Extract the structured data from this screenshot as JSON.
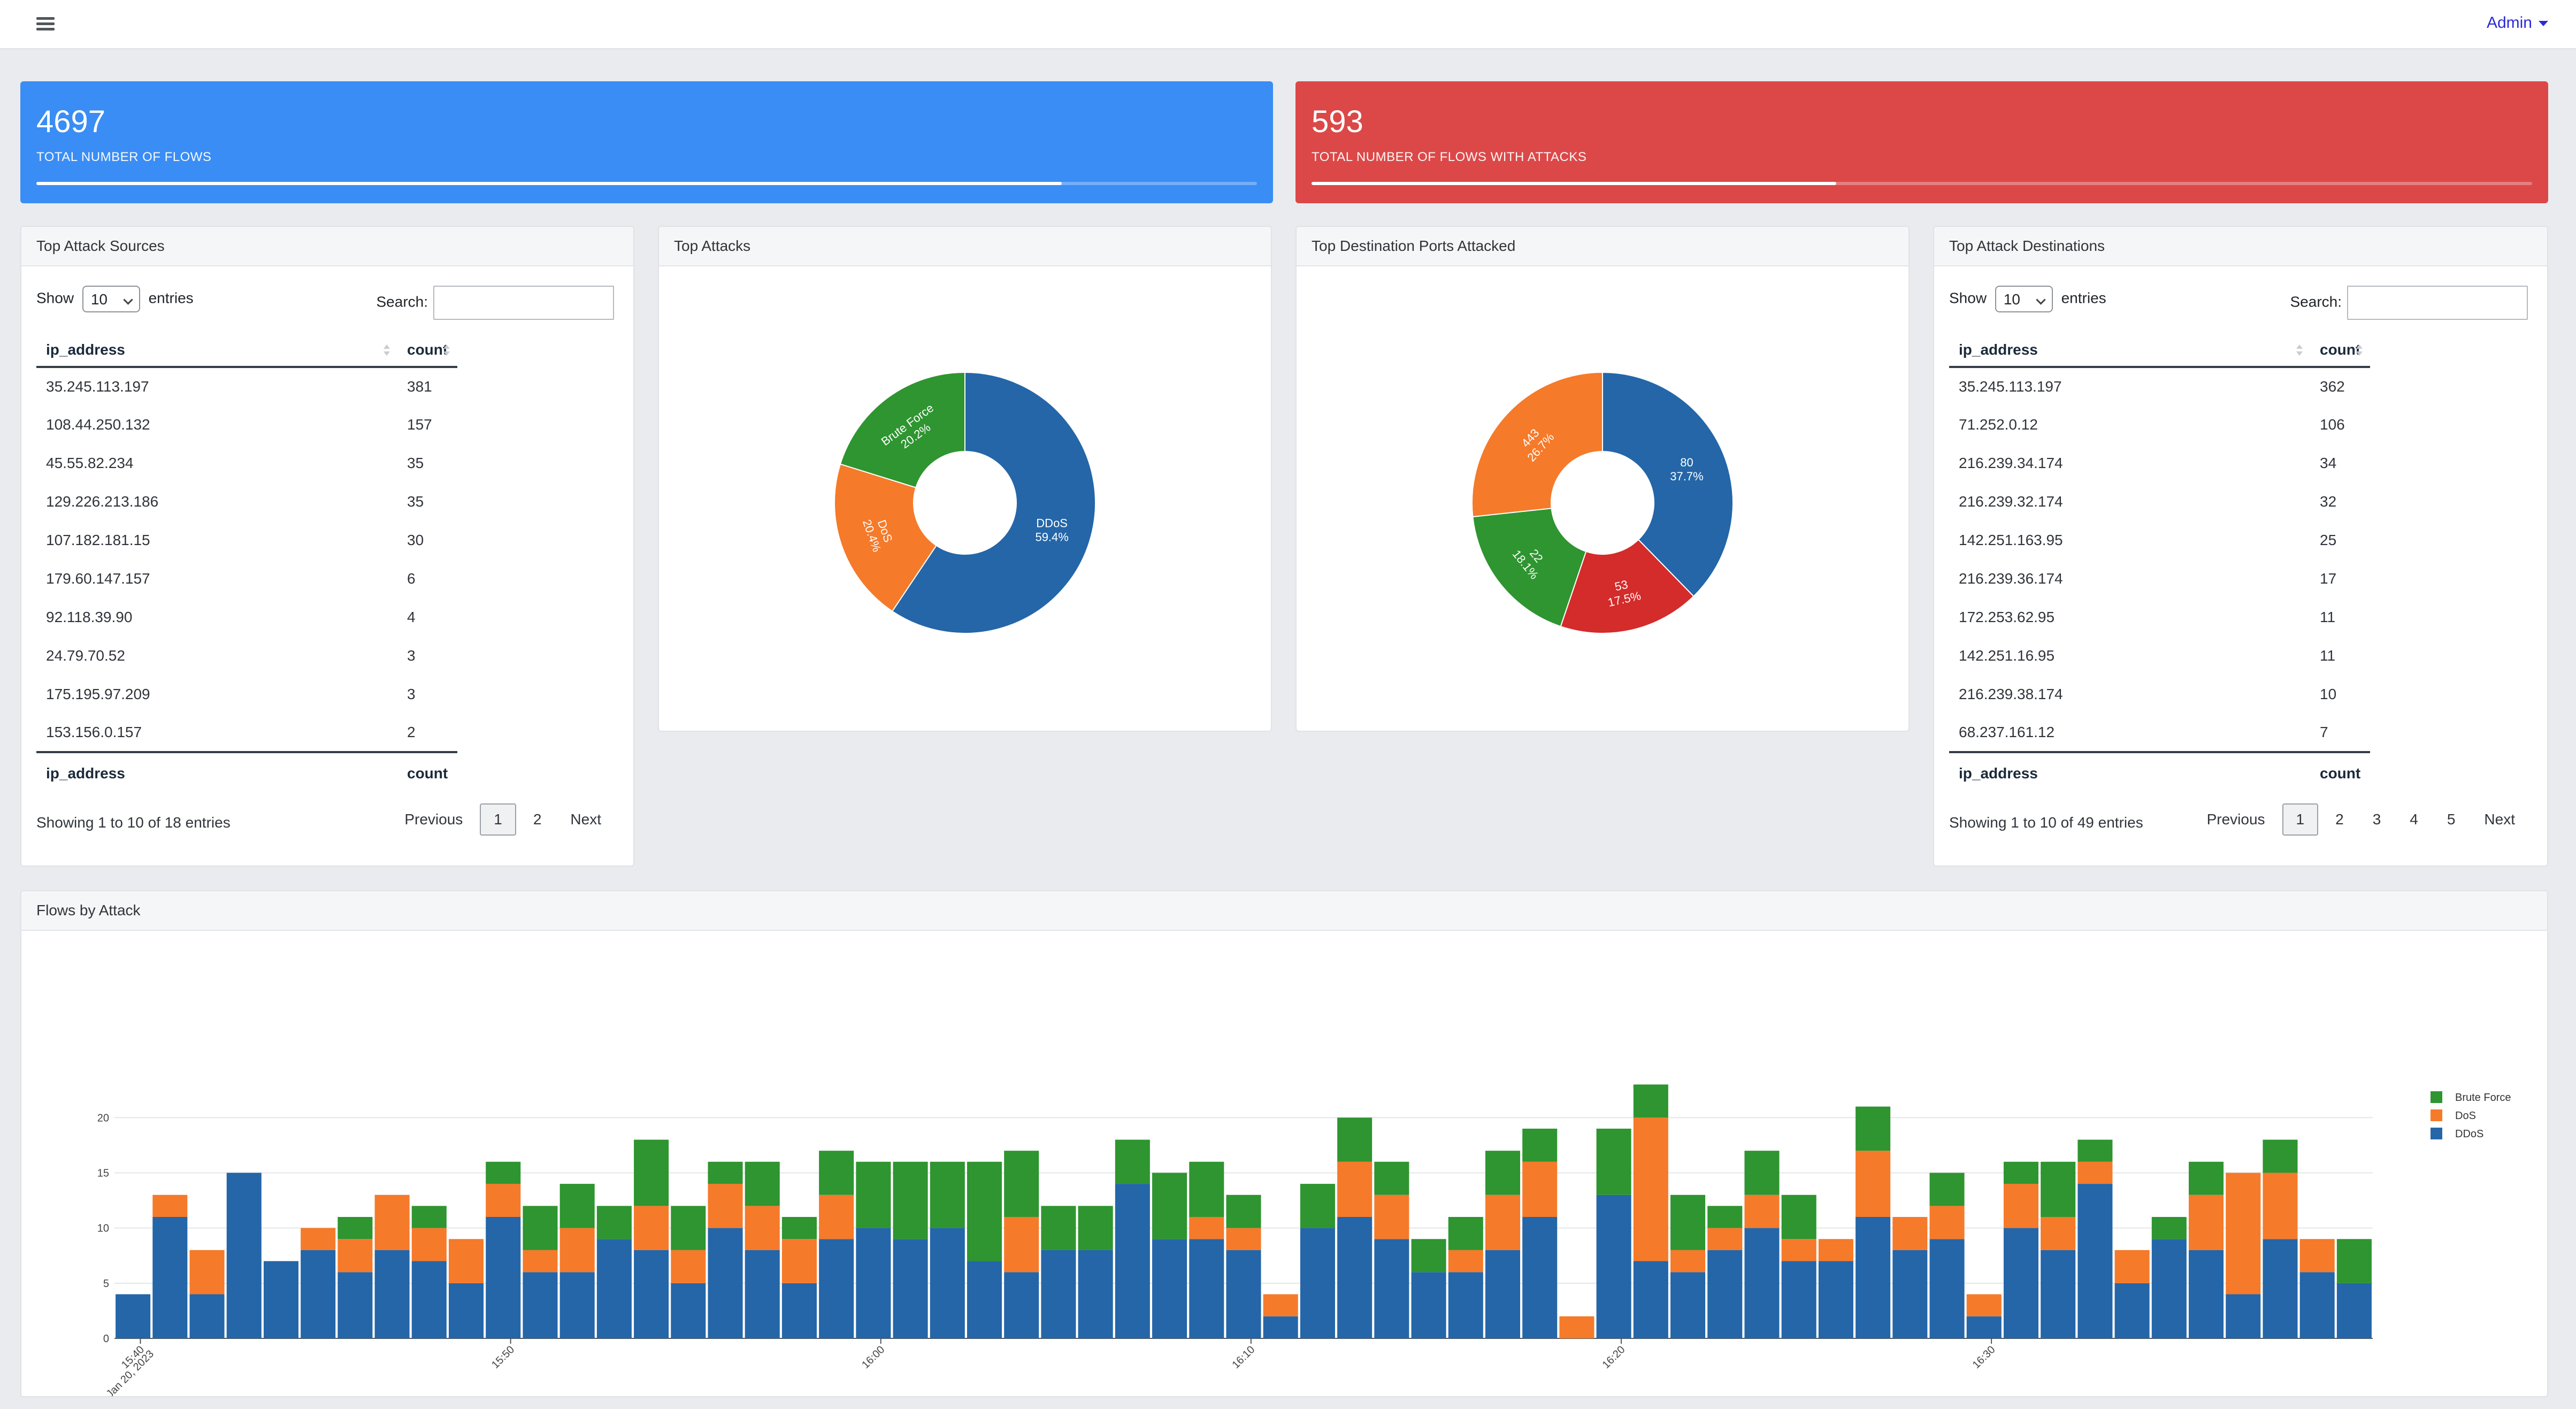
{
  "topbar": {
    "admin_label": "Admin"
  },
  "stats": [
    {
      "value": "4697",
      "label": "TOTAL NUMBER OF FLOWS",
      "progress": 0.84,
      "color": "#3a8df5"
    },
    {
      "value": "593",
      "label": "TOTAL NUMBER OF FLOWS WITH ATTACKS",
      "progress": 0.43,
      "color": "#dc4848"
    }
  ],
  "sources": {
    "title": "Top Attack Sources",
    "show_label": "Show",
    "entries_label": "entries",
    "page_size": "10",
    "search_label": "Search:",
    "columns": [
      "ip_address",
      "count"
    ],
    "rows": [
      [
        "35.245.113.197",
        "381"
      ],
      [
        "108.44.250.132",
        "157"
      ],
      [
        "45.55.82.234",
        "35"
      ],
      [
        "129.226.213.186",
        "35"
      ],
      [
        "107.182.181.15",
        "30"
      ],
      [
        "179.60.147.157",
        "6"
      ],
      [
        "92.118.39.90",
        "4"
      ],
      [
        "24.79.70.52",
        "3"
      ],
      [
        "175.195.97.209",
        "3"
      ],
      [
        "153.156.0.157",
        "2"
      ]
    ],
    "info": "Showing 1 to 10 of 18 entries",
    "pager": [
      "Previous",
      "1",
      "2",
      "Next"
    ]
  },
  "destinations": {
    "title": "Top Attack Destinations",
    "show_label": "Show",
    "entries_label": "entries",
    "page_size": "10",
    "search_label": "Search:",
    "columns": [
      "ip_address",
      "count"
    ],
    "rows": [
      [
        "35.245.113.197",
        "362"
      ],
      [
        "71.252.0.12",
        "106"
      ],
      [
        "216.239.34.174",
        "34"
      ],
      [
        "216.239.32.174",
        "32"
      ],
      [
        "142.251.163.95",
        "25"
      ],
      [
        "216.239.36.174",
        "17"
      ],
      [
        "172.253.62.95",
        "11"
      ],
      [
        "142.251.16.95",
        "11"
      ],
      [
        "216.239.38.174",
        "10"
      ],
      [
        "68.237.161.12",
        "7"
      ]
    ],
    "info": "Showing 1 to 10 of 49 entries",
    "pager": [
      "Previous",
      "1",
      "2",
      "3",
      "4",
      "5",
      "Next"
    ]
  },
  "top_attacks": {
    "title": "Top Attacks"
  },
  "top_ports": {
    "title": "Top Destination Ports Attacked"
  },
  "flows": {
    "title": "Flows by Attack"
  },
  "colors": {
    "ddos": "#2466a8",
    "dos": "#f57a2a",
    "brute": "#2e9530",
    "red": "#d42b2b"
  },
  "chart_data": [
    {
      "type": "pie",
      "labels": [
        "DDoS",
        "DoS",
        "Brute Force"
      ],
      "values": [
        59.4,
        20.4,
        20.2
      ],
      "value_labels": [
        "59.4%",
        "20.4%",
        "20.2%"
      ],
      "colors": [
        "#2466a8",
        "#f57a2a",
        "#2e9530"
      ]
    },
    {
      "type": "pie",
      "labels": [
        "80",
        "53",
        "22",
        "443"
      ],
      "values": [
        37.7,
        17.5,
        18.1,
        26.7
      ],
      "value_labels": [
        "37.7%",
        "17.5%",
        "18.1%",
        "26.7%"
      ],
      "colors": [
        "#2466a8",
        "#d42b2b",
        "#2e9530",
        "#f57a2a"
      ]
    },
    {
      "type": "bar",
      "stacked": true,
      "x_tick_labels": [
        "15:40",
        "15:50",
        "16:00",
        "16:10",
        "16:20",
        "16:30"
      ],
      "x_date_label": "Jan 20, 2023",
      "ylim": [
        0,
        22
      ],
      "y_ticks": [
        0,
        5,
        10,
        15,
        20
      ],
      "grid": true,
      "legend_position": "top-right",
      "series": [
        {
          "name": "DDoS",
          "color": "#2466a8",
          "values": [
            4,
            11,
            4,
            15,
            7,
            8,
            6,
            8,
            7,
            5,
            11,
            6,
            6,
            9,
            8,
            5,
            10,
            8,
            5,
            9,
            10,
            9,
            10,
            7,
            6,
            8,
            8,
            14,
            9,
            9,
            8,
            2,
            10,
            11,
            9,
            6,
            6,
            8,
            11,
            0,
            13,
            7,
            6,
            8,
            10,
            7,
            7,
            11,
            8,
            9,
            2,
            10,
            8,
            14,
            5,
            9,
            8,
            4,
            9,
            6,
            5
          ]
        },
        {
          "name": "DoS",
          "color": "#f57a2a",
          "values": [
            0,
            2,
            4,
            0,
            0,
            2,
            3,
            5,
            3,
            4,
            3,
            2,
            4,
            0,
            4,
            3,
            4,
            4,
            4,
            4,
            0,
            0,
            0,
            0,
            5,
            0,
            0,
            0,
            0,
            2,
            2,
            2,
            0,
            5,
            4,
            0,
            2,
            5,
            5,
            2,
            0,
            13,
            2,
            2,
            3,
            2,
            2,
            6,
            3,
            3,
            2,
            4,
            3,
            2,
            3,
            0,
            5,
            11,
            6,
            3,
            0
          ]
        },
        {
          "name": "Brute Force",
          "color": "#2e9530",
          "values": [
            0,
            0,
            0,
            0,
            0,
            0,
            2,
            0,
            2,
            0,
            2,
            4,
            4,
            3,
            6,
            4,
            2,
            4,
            2,
            4,
            6,
            7,
            6,
            9,
            6,
            4,
            4,
            4,
            6,
            5,
            3,
            0,
            4,
            4,
            3,
            3,
            3,
            4,
            3,
            0,
            6,
            3,
            5,
            2,
            4,
            4,
            0,
            4,
            0,
            3,
            0,
            2,
            5,
            2,
            0,
            2,
            3,
            0,
            3,
            0,
            4
          ]
        }
      ]
    }
  ]
}
